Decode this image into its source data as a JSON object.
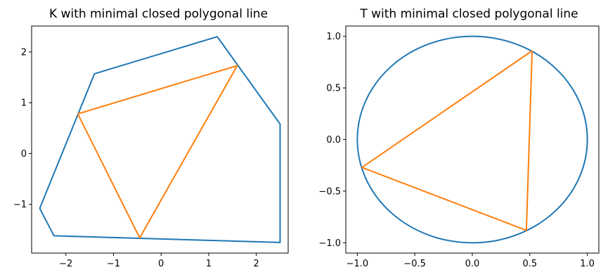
{
  "chart_data": [
    {
      "type": "line",
      "title": "K with minimal closed polygonal line",
      "xlabel": "",
      "ylabel": "",
      "xlim": [
        -2.72,
        2.67
      ],
      "ylim": [
        -1.96,
        2.51
      ],
      "xticks": [
        {
          "value": -2,
          "label": "−2"
        },
        {
          "value": -1,
          "label": "−1"
        },
        {
          "value": 0,
          "label": "0"
        },
        {
          "value": 1,
          "label": "1"
        },
        {
          "value": 2,
          "label": "2"
        }
      ],
      "yticks": [
        {
          "value": -1,
          "label": "−1"
        },
        {
          "value": 0,
          "label": "0"
        },
        {
          "value": 1,
          "label": "1"
        },
        {
          "value": 2,
          "label": "2"
        }
      ],
      "series": [
        {
          "color": "#1f77b4",
          "closed": true,
          "x": [
            -2.55,
            -2.25,
            2.5,
            2.5,
            1.18,
            -1.4,
            -2.55
          ],
          "y": [
            -1.08,
            -1.62,
            -1.75,
            0.58,
            2.3,
            1.57,
            -1.08
          ]
        },
        {
          "color": "#ff7f0e",
          "closed": true,
          "x": [
            -1.75,
            1.6,
            -0.45,
            -1.75
          ],
          "y": [
            0.78,
            1.73,
            -1.66,
            0.78
          ]
        }
      ]
    },
    {
      "type": "line",
      "title": "T with minimal closed polygonal line",
      "xlabel": "",
      "ylabel": "",
      "xlim": [
        -1.1,
        1.1
      ],
      "ylim": [
        -1.1,
        1.1
      ],
      "xticks": [
        {
          "value": -1.0,
          "label": "−1.0"
        },
        {
          "value": -0.5,
          "label": "−0.5"
        },
        {
          "value": 0.0,
          "label": "0.0"
        },
        {
          "value": 0.5,
          "label": "0.5"
        },
        {
          "value": 1.0,
          "label": "1.0"
        }
      ],
      "yticks": [
        {
          "value": -1.0,
          "label": "−1.0"
        },
        {
          "value": -0.5,
          "label": "−0.5"
        },
        {
          "value": 0.0,
          "label": "0.0"
        },
        {
          "value": 0.5,
          "label": "0.5"
        },
        {
          "value": 1.0,
          "label": "1.0"
        }
      ],
      "series": [
        {
          "color": "#1f77b4",
          "shape": "unit-circle",
          "closed": true,
          "x": [
            1.0,
            0.0,
            -1.0,
            0.0,
            1.0
          ],
          "y": [
            0.0,
            1.0,
            0.0,
            -1.0,
            0.0
          ]
        },
        {
          "color": "#ff7f0e",
          "closed": true,
          "x": [
            0.52,
            -0.96,
            0.47,
            0.52
          ],
          "y": [
            0.86,
            -0.27,
            -0.88,
            0.86
          ]
        }
      ]
    }
  ]
}
